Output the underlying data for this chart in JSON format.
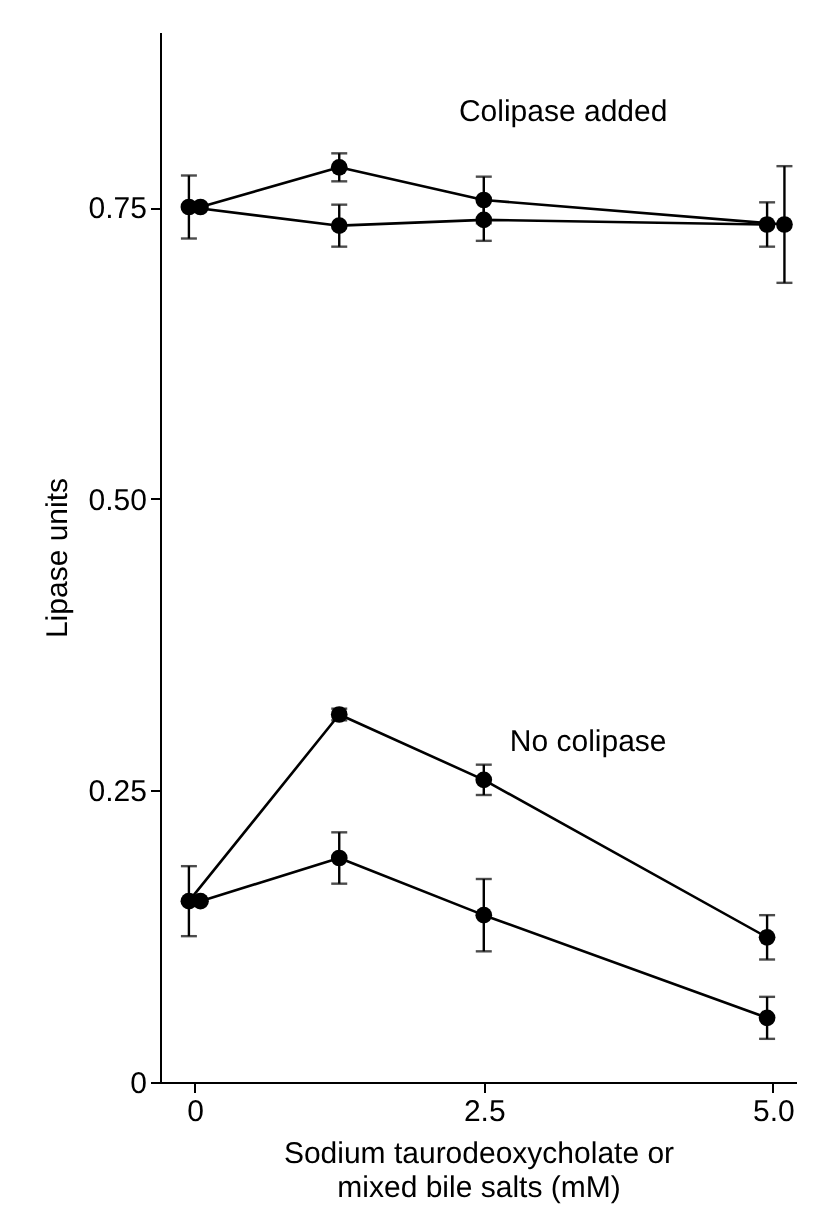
{
  "chart_data": {
    "type": "line",
    "xlabel": "Sodium taurodeoxycholate or\nmixed bile salts (mM)",
    "ylabel": "Lipase units",
    "xlim": [
      -0.3,
      5.2
    ],
    "xticks": [
      0,
      2.5,
      {
        "value": 5,
        "label": "5.0"
      }
    ],
    "ylim": [
      0,
      0.9
    ],
    "yticks": [
      0,
      0.25,
      {
        "value": 0.5,
        "label": "0.50"
      },
      0.75
    ],
    "grid": false,
    "marker": "circle",
    "line_style": "solid",
    "series": [
      {
        "color": "#000000",
        "x": [
          -0.05,
          1.25,
          2.5,
          4.95
        ],
        "values": [
          0.75,
          0.734,
          0.739,
          0.735
        ],
        "errors": [
          0.027,
          0.018,
          0.018,
          0.019
        ]
      },
      {
        "color": "#000000",
        "x": [
          0.05,
          1.25,
          2.5,
          5.1
        ],
        "values": [
          0.75,
          0.784,
          0.756,
          0.735
        ],
        "errors": [
          null,
          0.012,
          0.02,
          0.05
        ]
      },
      {
        "color": "#000000",
        "x": [
          -0.05,
          1.25,
          2.5,
          4.95
        ],
        "values": [
          0.155,
          0.315,
          0.259,
          0.124
        ],
        "errors": [
          0.03,
          0.005,
          0.013,
          0.019
        ]
      },
      {
        "color": "#000000",
        "x": [
          0.05,
          1.25,
          2.5,
          4.95
        ],
        "values": [
          0.155,
          0.192,
          0.143,
          0.055
        ],
        "errors": [
          null,
          0.022,
          0.031,
          0.018
        ]
      }
    ],
    "annotations": [
      "Colipase added",
      "No colipase"
    ]
  }
}
